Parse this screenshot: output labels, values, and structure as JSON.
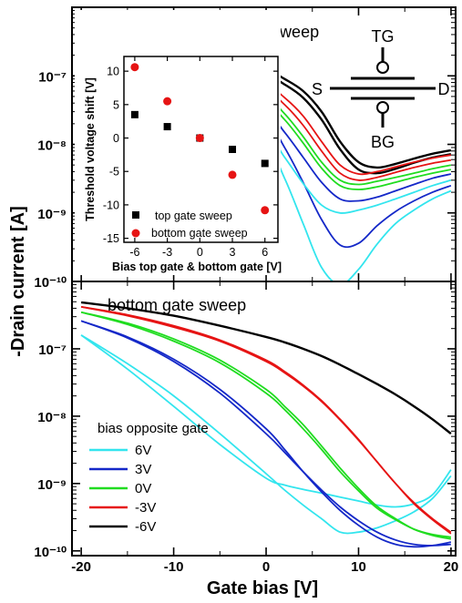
{
  "chart_data": {
    "type": "line",
    "xlabel": "Gate bias [V]",
    "ylabel": "-Drain current [A]",
    "x_ticks": [
      -20,
      -10,
      0,
      10,
      20
    ],
    "x_tick_labels": [
      "-20",
      "-10",
      "0",
      "10",
      "20"
    ],
    "xlim": [
      -21,
      20.5
    ],
    "y_scale": "log",
    "y_tick_labels": {
      "1e-10": "10⁻¹⁰",
      "1e-9": "10⁻⁹",
      "1e-8": "10⁻⁸",
      "1e-7": "10⁻⁷"
    },
    "legend_title": "bias opposite gate",
    "legend_placement": "bottom-left",
    "colors": {
      "6V": "#33e5ee",
      "3V": "#1428c8",
      "0V": "#20dc20",
      "-3V": "#e61414",
      "-6V": "#000000"
    },
    "panels": [
      {
        "title": "top gate sweep",
        "ylim": [
          1e-10,
          1e-06
        ],
        "diagram": {
          "tg": "TG",
          "bg": "BG",
          "s": "S",
          "d": "D"
        },
        "series": [
          {
            "name": "-6V",
            "color": "#000000",
            "branches": [
              {
                "x": [
                  -20,
                  -15,
                  -10,
                  -5,
                  0,
                  2,
                  4,
                  6,
                  8,
                  10,
                  12,
                  14,
                  16,
                  18,
                  20
                ],
                "y": [
                  5e-07,
                  4.2e-07,
                  3.2e-07,
                  2.2e-07,
                  1.25e-07,
                  9e-08,
                  6e-08,
                  3e-08,
                  1.1e-08,
                  5.5e-09,
                  4.6e-09,
                  5.2e-09,
                  6.2e-09,
                  7.3e-09,
                  8.2e-09
                ]
              },
              {
                "x": [
                  -20,
                  -15,
                  -10,
                  -5,
                  0,
                  2,
                  4,
                  6,
                  8,
                  10,
                  12,
                  14,
                  16,
                  18,
                  20
                ],
                "y": [
                  4.6e-07,
                  3.8e-07,
                  2.8e-07,
                  1.9e-07,
                  1.05e-07,
                  7.5e-08,
                  4.8e-08,
                  2.3e-08,
                  8.5e-09,
                  4.3e-09,
                  3.8e-09,
                  4.4e-09,
                  5.4e-09,
                  6.4e-09,
                  7.2e-09
                ]
              }
            ]
          },
          {
            "name": "-3V",
            "color": "#e61414",
            "branches": [
              {
                "x": [
                  -20,
                  -15,
                  -10,
                  -5,
                  0,
                  2,
                  4,
                  6,
                  8,
                  10,
                  12,
                  14,
                  16,
                  18,
                  20
                ],
                "y": [
                  4.1e-07,
                  3.3e-07,
                  2.4e-07,
                  1.5e-07,
                  7.5e-08,
                  4.8e-08,
                  2.6e-08,
                  1.1e-08,
                  5e-09,
                  3.7e-09,
                  4e-09,
                  4.7e-09,
                  5.5e-09,
                  6.3e-09,
                  7e-09
                ]
              },
              {
                "x": [
                  -20,
                  -15,
                  -10,
                  -5,
                  0,
                  2,
                  4,
                  6,
                  8,
                  10,
                  12,
                  14,
                  16,
                  18,
                  20
                ],
                "y": [
                  3.8e-07,
                  3e-07,
                  2.1e-07,
                  1.3e-07,
                  6.2e-08,
                  3.8e-08,
                  1.9e-08,
                  8e-09,
                  3.8e-09,
                  3e-09,
                  3.3e-09,
                  3.9e-09,
                  4.6e-09,
                  5.3e-09,
                  5.9e-09
                ]
              }
            ]
          },
          {
            "name": "0V",
            "color": "#20dc20",
            "branches": [
              {
                "x": [
                  -20,
                  -15,
                  -10,
                  -5,
                  0,
                  2,
                  4,
                  6,
                  8,
                  10,
                  12,
                  14,
                  16,
                  18,
                  20
                ],
                "y": [
                  3.4e-07,
                  2.6e-07,
                  1.8e-07,
                  1.05e-07,
                  4.8e-08,
                  2.8e-08,
                  1.3e-08,
                  5.5e-09,
                  3e-09,
                  2.6e-09,
                  2.9e-09,
                  3.3e-09,
                  3.8e-09,
                  4.4e-09,
                  5e-09
                ]
              },
              {
                "x": [
                  -20,
                  -15,
                  -10,
                  -5,
                  0,
                  2,
                  4,
                  6,
                  8,
                  10,
                  12,
                  14,
                  16,
                  18,
                  20
                ],
                "y": [
                  3.1e-07,
                  2.4e-07,
                  1.6e-07,
                  9e-08,
                  4e-08,
                  2.3e-08,
                  1.05e-08,
                  4.5e-09,
                  2.5e-09,
                  2.2e-09,
                  2.4e-09,
                  2.8e-09,
                  3.3e-09,
                  3.8e-09,
                  4.3e-09
                ]
              }
            ]
          },
          {
            "name": "3V",
            "color": "#1428c8",
            "branches": [
              {
                "x": [
                  -20,
                  -15,
                  -10,
                  -5,
                  0,
                  2,
                  4,
                  6,
                  8,
                  10,
                  12,
                  14,
                  16,
                  18,
                  20
                ],
                "y": [
                  2.9e-07,
                  2.1e-07,
                  1.4e-07,
                  7.5e-08,
                  3e-08,
                  1.5e-08,
                  6.5e-09,
                  2.8e-09,
                  1.6e-09,
                  1.5e-09,
                  1.7e-09,
                  2.1e-09,
                  2.6e-09,
                  3.2e-09,
                  3.7e-09
                ]
              },
              {
                "x": [
                  -20,
                  -15,
                  -10,
                  -5,
                  0,
                  2,
                  4,
                  6,
                  8,
                  10,
                  12,
                  14,
                  16,
                  18,
                  20
                ],
                "y": [
                  2.6e-07,
                  1.9e-07,
                  1.2e-07,
                  6e-08,
                  2.2e-08,
                  9e-09,
                  2.8e-09,
                  8e-10,
                  3.4e-10,
                  3.6e-10,
                  6.5e-10,
                  1.05e-09,
                  1.5e-09,
                  2e-09,
                  2.5e-09
                ]
              }
            ]
          },
          {
            "name": "6V",
            "color": "#33e5ee",
            "branches": [
              {
                "x": [
                  -20,
                  -15,
                  -10,
                  -5,
                  0,
                  2,
                  4,
                  6,
                  8,
                  10,
                  12,
                  14,
                  16,
                  18,
                  20
                ],
                "y": [
                  2.3e-07,
                  1.6e-07,
                  9.5e-08,
                  4.5e-08,
                  1.5e-08,
                  6.5e-09,
                  2.7e-09,
                  1.3e-09,
                  1e-09,
                  1.1e-09,
                  1.3e-09,
                  1.6e-09,
                  2e-09,
                  2.5e-09,
                  3e-09
                ]
              },
              {
                "x": [
                  -20,
                  -15,
                  -10,
                  -5,
                  0,
                  2,
                  4,
                  6,
                  8,
                  10,
                  12,
                  14,
                  16,
                  18,
                  20
                ],
                "y": [
                  2.1e-07,
                  1.4e-07,
                  8e-08,
                  3.6e-08,
                  1e-08,
                  3.2e-09,
                  7e-10,
                  1.6e-10,
                  9e-11,
                  1.5e-10,
                  3.5e-10,
                  7e-10,
                  1.1e-09,
                  1.6e-09,
                  2.1e-09
                ]
              }
            ]
          }
        ]
      },
      {
        "title": "bottom gate sweep",
        "ylim": [
          8.5e-11,
          1e-06
        ],
        "series": [
          {
            "name": "6V",
            "color": "#33e5ee",
            "branches": [
              {
                "x": [
                  -20,
                  -15,
                  -10,
                  -5,
                  0,
                  2,
                  4,
                  6,
                  8,
                  10,
                  12,
                  14,
                  16,
                  18,
                  20
                ],
                "y": [
                  1.6e-07,
                  6e-08,
                  2e-08,
                  5.5e-09,
                  1.4e-09,
                  8e-10,
                  4.8e-10,
                  3e-10,
                  1.9e-10,
                  1.9e-10,
                  2.2e-10,
                  2.8e-10,
                  3.8e-10,
                  6e-10,
                  1.3e-09
                ]
              },
              {
                "x": [
                  -20,
                  -15,
                  -10,
                  -5,
                  0,
                  2,
                  4,
                  6,
                  8,
                  10,
                  12,
                  14,
                  16,
                  18,
                  20
                ],
                "y": [
                  1.6e-07,
                  5e-08,
                  1.4e-08,
                  3.8e-09,
                  1.2e-09,
                  9.5e-10,
                  8.2e-10,
                  7.2e-10,
                  6.3e-10,
                  5.5e-10,
                  4.8e-10,
                  4.5e-10,
                  5e-10,
                  6.8e-10,
                  1.6e-09
                ]
              }
            ]
          },
          {
            "name": "3V",
            "color": "#1428c8",
            "branches": [
              {
                "x": [
                  -20,
                  -15,
                  -10,
                  -5,
                  0,
                  2,
                  4,
                  6,
                  8,
                  10,
                  12,
                  14,
                  16,
                  18,
                  20
                ],
                "y": [
                  2.6e-07,
                  1.5e-07,
                  7e-08,
                  2.5e-08,
                  6.5e-09,
                  3.2e-09,
                  1.5e-09,
                  7.5e-10,
                  4e-10,
                  2.4e-10,
                  1.6e-10,
                  1.25e-10,
                  1.15e-10,
                  1.2e-10,
                  1.35e-10
                ]
              },
              {
                "x": [
                  -20,
                  -15,
                  -10,
                  -5,
                  0,
                  2,
                  4,
                  6,
                  8,
                  10,
                  12,
                  14,
                  16,
                  18,
                  20
                ],
                "y": [
                  2.6e-07,
                  1.45e-07,
                  6.5e-08,
                  2.2e-08,
                  5.5e-09,
                  2.9e-09,
                  1.5e-09,
                  8e-10,
                  4.5e-10,
                  2.8e-10,
                  1.9e-10,
                  1.45e-10,
                  1.25e-10,
                  1.2e-10,
                  1.25e-10
                ]
              }
            ]
          },
          {
            "name": "0V",
            "color": "#20dc20",
            "branches": [
              {
                "x": [
                  -20,
                  -15,
                  -10,
                  -5,
                  0,
                  2,
                  4,
                  6,
                  8,
                  10,
                  12,
                  14,
                  16,
                  18,
                  20
                ],
                "y": [
                  3.5e-07,
                  2.4e-07,
                  1.4e-07,
                  6.8e-08,
                  2.5e-08,
                  1.4e-08,
                  7.5e-09,
                  3.6e-09,
                  1.7e-09,
                  8.5e-10,
                  4.6e-10,
                  3e-10,
                  2.1e-10,
                  1.7e-10,
                  1.5e-10
                ]
              },
              {
                "x": [
                  -20,
                  -15,
                  -10,
                  -5,
                  0,
                  2,
                  4,
                  6,
                  8,
                  10,
                  12,
                  14,
                  16,
                  18,
                  20
                ],
                "y": [
                  3.5e-07,
                  2.3e-07,
                  1.3e-07,
                  6.2e-08,
                  2.2e-08,
                  1.25e-08,
                  6.5e-09,
                  3.2e-09,
                  1.5e-09,
                  7.8e-10,
                  4.3e-10,
                  2.9e-10,
                  2.1e-10,
                  1.75e-10,
                  1.6e-10
                ]
              }
            ]
          },
          {
            "name": "-3V",
            "color": "#e61414",
            "branches": [
              {
                "x": [
                  -20,
                  -15,
                  -10,
                  -5,
                  0,
                  2,
                  4,
                  6,
                  8,
                  10,
                  12,
                  14,
                  16,
                  18,
                  20
                ],
                "y": [
                  4.2e-07,
                  3.2e-07,
                  2.2e-07,
                  1.35e-07,
                  6.8e-08,
                  4.6e-08,
                  2.9e-08,
                  1.7e-08,
                  9e-09,
                  4.5e-09,
                  2.1e-09,
                  1e-09,
                  5e-10,
                  2.9e-10,
                  1.8e-10
                ]
              },
              {
                "x": [
                  -20,
                  -15,
                  -10,
                  -5,
                  0,
                  2,
                  4,
                  6,
                  8,
                  10,
                  12,
                  14,
                  16,
                  18,
                  20
                ],
                "y": [
                  4.2e-07,
                  3.1e-07,
                  2.1e-07,
                  1.3e-07,
                  6.5e-08,
                  4.4e-08,
                  2.8e-08,
                  1.65e-08,
                  8.8e-09,
                  4.4e-09,
                  2.1e-09,
                  1e-09,
                  5.2e-10,
                  3e-10,
                  1.9e-10
                ]
              }
            ]
          },
          {
            "name": "-6V",
            "color": "#000000",
            "branches": [
              {
                "x": [
                  -20,
                  -15,
                  -10,
                  -5,
                  0,
                  2,
                  4,
                  6,
                  8,
                  10,
                  12,
                  14,
                  16,
                  18,
                  20
                ],
                "y": [
                  4.9e-07,
                  4e-07,
                  3.1e-07,
                  2.2e-07,
                  1.5e-07,
                  1.25e-07,
                  1e-07,
                  7.8e-08,
                  5.8e-08,
                  4.2e-08,
                  3e-08,
                  2.1e-08,
                  1.4e-08,
                  9e-09,
                  5.5e-09
                ]
              }
            ]
          }
        ]
      }
    ],
    "inset": {
      "type": "scatter",
      "xlabel": "Bias top gate & bottom gate [V]",
      "ylabel": "Threshold voltage shift [V]",
      "x_ticks": [
        -6,
        -3,
        0,
        3,
        6
      ],
      "x_tick_labels": [
        "-6",
        "-3",
        "0",
        "3",
        "6"
      ],
      "y_ticks": [
        -15,
        -10,
        -5,
        0,
        5,
        10
      ],
      "y_tick_labels": [
        "-15",
        "-10",
        "-5",
        "0",
        "5",
        "10"
      ],
      "xlim": [
        -7,
        7.2
      ],
      "ylim": [
        -15.6,
        12.2
      ],
      "series": [
        {
          "name": "top gate sweep",
          "marker": "square",
          "color": "#000000",
          "x": [
            -6,
            -3,
            0,
            3,
            6
          ],
          "y": [
            3.5,
            1.7,
            0,
            -1.7,
            -3.8
          ]
        },
        {
          "name": "bottom gate sweep",
          "marker": "circle",
          "color": "#e61414",
          "x": [
            -6,
            -3,
            0,
            3,
            6
          ],
          "y": [
            10.6,
            5.5,
            0,
            -5.5,
            -10.8
          ]
        }
      ]
    }
  }
}
